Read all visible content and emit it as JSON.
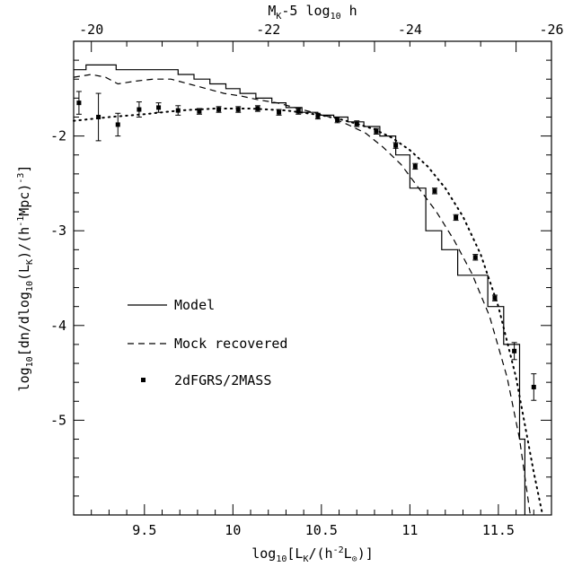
{
  "chart_data": {
    "type": "line",
    "xlabel": "log10[LK/(h-2L⊙)]",
    "ylabel": "log10[dn/dlog10(LK)/(h-1Mpc)-3]",
    "top_xlabel": "MK-5 log10 h",
    "xlim": [
      9.1,
      11.8
    ],
    "ylim": [
      -6.0,
      -1.0
    ],
    "x_ticks": [
      "9.5",
      "10",
      "10.5",
      "11",
      "11.5"
    ],
    "y_ticks": [
      "-2",
      "-3",
      "-4",
      "-5"
    ],
    "top_ticks": [
      "-20",
      "-22",
      "-24",
      "-26"
    ],
    "top_tick_x": [
      9.2,
      10.2,
      11.0,
      11.8
    ],
    "grid": false,
    "legend_position": "lower-left",
    "series": [
      {
        "name": "Model",
        "style": "steps",
        "x": [
          9.1,
          9.17,
          9.26,
          9.34,
          9.43,
          9.52,
          9.6,
          9.69,
          9.78,
          9.87,
          9.96,
          10.04,
          10.13,
          10.22,
          10.3,
          10.39,
          10.48,
          10.57,
          10.65,
          10.74,
          10.83,
          10.92,
          11.0,
          11.09,
          11.18,
          11.27,
          11.35,
          11.44,
          11.53,
          11.62,
          11.65
        ],
        "y": [
          -1.3,
          -1.25,
          -1.25,
          -1.3,
          -1.3,
          -1.3,
          -1.3,
          -1.35,
          -1.4,
          -1.45,
          -1.5,
          -1.55,
          -1.6,
          -1.65,
          -1.7,
          -1.75,
          -1.78,
          -1.8,
          -1.85,
          -1.9,
          -2.0,
          -2.2,
          -2.55,
          -3.0,
          -3.2,
          -3.47,
          -3.47,
          -3.8,
          -4.2,
          -5.2,
          -6.0
        ]
      },
      {
        "name": "Mock recovered",
        "style": "dashed",
        "x": [
          9.1,
          9.2,
          9.28,
          9.35,
          9.45,
          9.55,
          9.65,
          9.75,
          9.85,
          9.95,
          10.05,
          10.15,
          10.25,
          10.35,
          10.45,
          10.55,
          10.65,
          10.75,
          10.85,
          10.95,
          11.05,
          11.15,
          11.25,
          11.35,
          11.45,
          11.55,
          11.62,
          11.68
        ],
        "y": [
          -1.38,
          -1.35,
          -1.38,
          -1.45,
          -1.42,
          -1.4,
          -1.4,
          -1.45,
          -1.5,
          -1.55,
          -1.58,
          -1.62,
          -1.65,
          -1.7,
          -1.75,
          -1.8,
          -1.88,
          -1.97,
          -2.12,
          -2.3,
          -2.55,
          -2.8,
          -3.1,
          -3.45,
          -3.9,
          -4.55,
          -5.2,
          -6.0
        ]
      },
      {
        "name": "2dFGRS/2MASS",
        "style": "points",
        "x": [
          9.13,
          9.24,
          9.35,
          9.47,
          9.58,
          9.69,
          9.81,
          9.92,
          10.03,
          10.14,
          10.26,
          10.37,
          10.48,
          10.59,
          10.7,
          10.81,
          10.92,
          11.03,
          11.14,
          11.26,
          11.37,
          11.48,
          11.59,
          11.7
        ],
        "y": [
          -1.65,
          -1.8,
          -1.88,
          -1.72,
          -1.7,
          -1.73,
          -1.74,
          -1.72,
          -1.72,
          -1.71,
          -1.75,
          -1.74,
          -1.79,
          -1.83,
          -1.87,
          -1.95,
          -2.1,
          -2.32,
          -2.58,
          -2.86,
          -3.28,
          -3.71,
          -4.27,
          -4.65
        ],
        "yerr": [
          0.12,
          0.25,
          0.12,
          0.08,
          0.05,
          0.05,
          0.03,
          0.03,
          0.03,
          0.03,
          0.03,
          0.03,
          0.03,
          0.03,
          0.03,
          0.03,
          0.03,
          0.03,
          0.03,
          0.03,
          0.03,
          0.03,
          0.09,
          0.14
        ]
      },
      {
        "name": "",
        "style": "dotted",
        "x": [
          9.1,
          9.3,
          9.5,
          9.7,
          9.9,
          10.1,
          10.3,
          10.5,
          10.6,
          10.7,
          10.8,
          10.9,
          11.0,
          11.1,
          11.2,
          11.3,
          11.4,
          11.5,
          11.6,
          11.7,
          11.75
        ],
        "y": [
          -1.84,
          -1.8,
          -1.77,
          -1.73,
          -1.71,
          -1.71,
          -1.73,
          -1.78,
          -1.82,
          -1.87,
          -1.93,
          -2.02,
          -2.15,
          -2.32,
          -2.55,
          -2.85,
          -3.25,
          -3.8,
          -4.55,
          -5.55,
          -6.0
        ]
      }
    ]
  }
}
